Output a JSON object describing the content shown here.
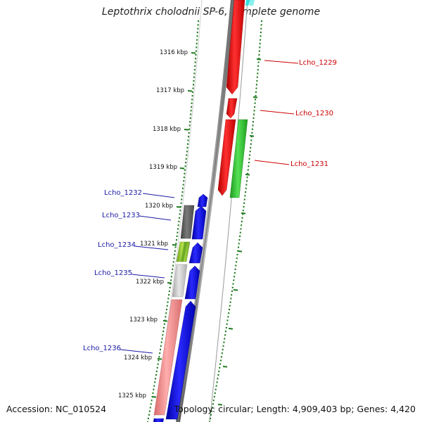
{
  "title": "Leptothrix cholodnii SP-6, complete genome",
  "accession": "Accession: NC_010524",
  "summary": "Topology: circular; Length: 4,909,403 bp; Genes: 4,420",
  "colors": {
    "backbone": "#8a8a8a",
    "ruler": "#1f7a1f",
    "forward_gene": "#0000ee",
    "reverse_gene": "#ee0000",
    "forward_label": "#1a1aa6",
    "reverse_label": "#cc0000",
    "cds_green": "#33cc33",
    "cds_light_green": "#9acd32",
    "cds_dark_grey": "#666666",
    "cds_light_grey": "#cccccc",
    "cds_pink": "#f08a8a"
  },
  "ticks": [
    "1316 kbp",
    "1317 kbp",
    "1318 kbp",
    "1319 kbp",
    "1320 kbp",
    "1321 kbp",
    "1322 kbp",
    "1323 kbp",
    "1324 kbp",
    "1325 kbp"
  ],
  "genes": [
    {
      "label": "Lcho_1229",
      "strand": "reverse",
      "color_key": "reverse_label"
    },
    {
      "label": "Lcho_1230",
      "strand": "reverse",
      "color_key": "reverse_label"
    },
    {
      "label": "Lcho_1231",
      "strand": "reverse",
      "color_key": "reverse_label"
    },
    {
      "label": "Lcho_1232",
      "strand": "forward",
      "color_key": "forward_label"
    },
    {
      "label": "Lcho_1233",
      "strand": "forward",
      "color_key": "forward_label"
    },
    {
      "label": "Lcho_1234",
      "strand": "forward",
      "color_key": "forward_label"
    },
    {
      "label": "Lcho_1235",
      "strand": "forward",
      "color_key": "forward_label"
    },
    {
      "label": "Lcho_1236",
      "strand": "forward",
      "color_key": "forward_label"
    }
  ]
}
